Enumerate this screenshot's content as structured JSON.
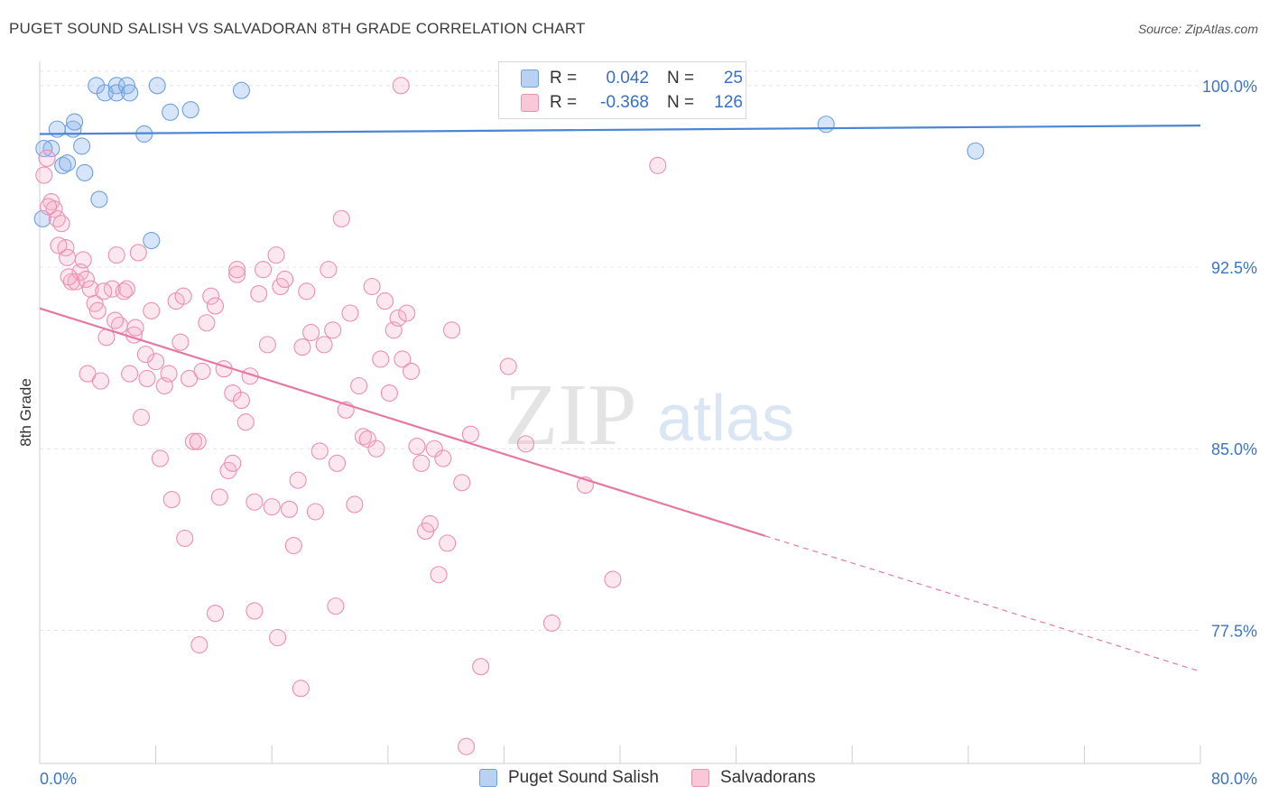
{
  "header": {
    "title": "PUGET SOUND SALISH VS SALVADORAN 8TH GRADE CORRELATION CHART",
    "source": "Source: ZipAtlas.com"
  },
  "watermark": {
    "zip": "ZIP",
    "atlas": "atlas"
  },
  "legend": {
    "rows": [
      {
        "r_label": "R =",
        "r_value": "0.042",
        "n_label": "N =",
        "n_value": "25",
        "color": "#6f9fe0"
      },
      {
        "r_label": "R =",
        "r_value": "-0.368",
        "n_label": "N =",
        "n_value": "126",
        "color": "#ec8fb0"
      }
    ]
  },
  "bottom_legend": [
    {
      "label": "Puget Sound Salish",
      "color": "#6f9fe0"
    },
    {
      "label": "Salvadorans",
      "color": "#ec8fb0"
    }
  ],
  "colors": {
    "blue": "#4a86d4",
    "pink": "#e57aa1",
    "tick_blue": "#3d74c9",
    "grid": "#e4e4e4"
  },
  "chart_data": {
    "type": "scatter",
    "title": "PUGET SOUND SALISH VS SALVADORAN 8TH GRADE CORRELATION CHART",
    "ylabel": "8th Grade",
    "xlabel": "",
    "xlim": [
      0,
      80
    ],
    "ylim": [
      72.0,
      101.0
    ],
    "x_tick_labels": [
      "0.0%",
      "80.0%"
    ],
    "y_ticks": [
      77.5,
      85.0,
      92.5,
      100.0
    ],
    "y_tick_labels": [
      "77.5%",
      "85.0%",
      "92.5%",
      "100.0%"
    ],
    "grid": true,
    "legend_position": "top-center",
    "series": [
      {
        "name": "Puget Sound Salish",
        "color": "#6f9fe0",
        "trend": {
          "x": [
            0,
            80
          ],
          "y": [
            98.0,
            98.35
          ]
        },
        "points": [
          [
            0.2,
            94.5
          ],
          [
            0.8,
            97.4
          ],
          [
            1.2,
            98.2
          ],
          [
            1.6,
            96.7
          ],
          [
            1.9,
            96.8
          ],
          [
            2.3,
            98.2
          ],
          [
            2.4,
            98.5
          ],
          [
            2.9,
            97.5
          ],
          [
            3.1,
            96.4
          ],
          [
            4.1,
            95.3
          ],
          [
            3.9,
            100.0
          ],
          [
            4.5,
            99.7
          ],
          [
            5.3,
            100.0
          ],
          [
            5.3,
            99.7
          ],
          [
            6.0,
            100.0
          ],
          [
            6.2,
            99.7
          ],
          [
            8.1,
            100.0
          ],
          [
            7.2,
            98.0
          ],
          [
            7.7,
            93.6
          ],
          [
            9.0,
            98.9
          ],
          [
            10.4,
            99.0
          ],
          [
            13.9,
            99.8
          ],
          [
            54.2,
            98.4
          ],
          [
            64.5,
            97.3
          ],
          [
            0.3,
            97.4
          ]
        ]
      },
      {
        "name": "Salvadorans",
        "color": "#ec8fb0",
        "trend": {
          "x": [
            0,
            50
          ],
          "y": [
            90.8,
            81.4
          ]
        },
        "trend_dashed": {
          "x": [
            50,
            80
          ],
          "y": [
            81.4,
            75.8
          ]
        },
        "points": [
          [
            0.3,
            96.3
          ],
          [
            0.5,
            97.0
          ],
          [
            0.8,
            95.2
          ],
          [
            1.0,
            94.9
          ],
          [
            1.2,
            94.5
          ],
          [
            1.5,
            94.3
          ],
          [
            1.8,
            93.3
          ],
          [
            1.9,
            92.9
          ],
          [
            2.2,
            91.9
          ],
          [
            2.5,
            91.9
          ],
          [
            2.8,
            92.3
          ],
          [
            3.0,
            92.8
          ],
          [
            3.2,
            92.0
          ],
          [
            3.5,
            91.6
          ],
          [
            3.8,
            91.0
          ],
          [
            4.0,
            90.7
          ],
          [
            4.2,
            87.8
          ],
          [
            4.6,
            89.6
          ],
          [
            5.0,
            91.6
          ],
          [
            5.3,
            93.0
          ],
          [
            5.5,
            90.1
          ],
          [
            5.8,
            91.5
          ],
          [
            6.0,
            91.6
          ],
          [
            6.2,
            88.1
          ],
          [
            6.5,
            89.7
          ],
          [
            6.8,
            93.1
          ],
          [
            7.0,
            86.3
          ],
          [
            7.4,
            87.9
          ],
          [
            7.7,
            90.7
          ],
          [
            8.0,
            88.6
          ],
          [
            8.3,
            84.6
          ],
          [
            8.6,
            87.6
          ],
          [
            8.9,
            88.1
          ],
          [
            9.1,
            82.9
          ],
          [
            9.4,
            91.1
          ],
          [
            9.7,
            89.4
          ],
          [
            10.0,
            81.3
          ],
          [
            10.3,
            87.9
          ],
          [
            10.6,
            85.3
          ],
          [
            10.9,
            85.3
          ],
          [
            11.2,
            88.2
          ],
          [
            11.5,
            90.2
          ],
          [
            11.8,
            91.3
          ],
          [
            12.1,
            90.9
          ],
          [
            12.4,
            83.0
          ],
          [
            12.7,
            88.3
          ],
          [
            13.0,
            84.1
          ],
          [
            13.3,
            87.3
          ],
          [
            13.6,
            92.2
          ],
          [
            13.9,
            87.0
          ],
          [
            14.2,
            86.1
          ],
          [
            14.5,
            88.0
          ],
          [
            14.8,
            82.8
          ],
          [
            15.1,
            91.4
          ],
          [
            15.4,
            92.4
          ],
          [
            15.7,
            89.3
          ],
          [
            16.0,
            82.6
          ],
          [
            16.3,
            93.0
          ],
          [
            16.6,
            91.7
          ],
          [
            16.9,
            92.0
          ],
          [
            17.2,
            82.5
          ],
          [
            17.5,
            81.0
          ],
          [
            17.8,
            83.7
          ],
          [
            18.1,
            89.2
          ],
          [
            18.4,
            91.5
          ],
          [
            18.7,
            89.8
          ],
          [
            19.0,
            82.4
          ],
          [
            19.3,
            84.9
          ],
          [
            19.6,
            89.3
          ],
          [
            19.9,
            92.4
          ],
          [
            20.2,
            89.9
          ],
          [
            20.5,
            84.4
          ],
          [
            20.8,
            94.5
          ],
          [
            21.1,
            86.6
          ],
          [
            21.4,
            90.6
          ],
          [
            21.7,
            82.7
          ],
          [
            22.0,
            87.6
          ],
          [
            22.3,
            85.5
          ],
          [
            22.6,
            85.4
          ],
          [
            22.9,
            91.7
          ],
          [
            23.2,
            85.0
          ],
          [
            23.5,
            88.7
          ],
          [
            23.8,
            91.1
          ],
          [
            24.1,
            87.3
          ],
          [
            24.4,
            89.9
          ],
          [
            24.7,
            90.4
          ],
          [
            25.0,
            88.7
          ],
          [
            25.3,
            90.6
          ],
          [
            25.6,
            88.2
          ],
          [
            26.0,
            85.1
          ],
          [
            26.3,
            84.4
          ],
          [
            26.6,
            81.6
          ],
          [
            26.9,
            81.9
          ],
          [
            27.2,
            85.0
          ],
          [
            27.5,
            79.8
          ],
          [
            27.8,
            84.6
          ],
          [
            28.1,
            81.1
          ],
          [
            28.4,
            89.9
          ],
          [
            29.1,
            83.6
          ],
          [
            29.7,
            85.6
          ],
          [
            30.4,
            76.0
          ],
          [
            32.3,
            88.4
          ],
          [
            33.5,
            85.2
          ],
          [
            35.3,
            77.8
          ],
          [
            37.6,
            83.5
          ],
          [
            39.5,
            79.6
          ],
          [
            42.6,
            96.7
          ],
          [
            9.9,
            91.3
          ],
          [
            12.1,
            78.2
          ],
          [
            13.3,
            84.4
          ],
          [
            13.6,
            92.4
          ],
          [
            14.8,
            78.3
          ],
          [
            16.4,
            77.2
          ],
          [
            18.0,
            75.1
          ],
          [
            20.4,
            78.5
          ],
          [
            24.9,
            100.0
          ],
          [
            29.4,
            72.7
          ],
          [
            11.0,
            76.9
          ],
          [
            6.6,
            90.0
          ],
          [
            7.3,
            88.9
          ],
          [
            5.2,
            90.3
          ],
          [
            4.4,
            91.5
          ],
          [
            3.3,
            88.1
          ],
          [
            2.0,
            92.1
          ],
          [
            1.3,
            93.4
          ],
          [
            0.6,
            95.0
          ]
        ]
      }
    ]
  }
}
